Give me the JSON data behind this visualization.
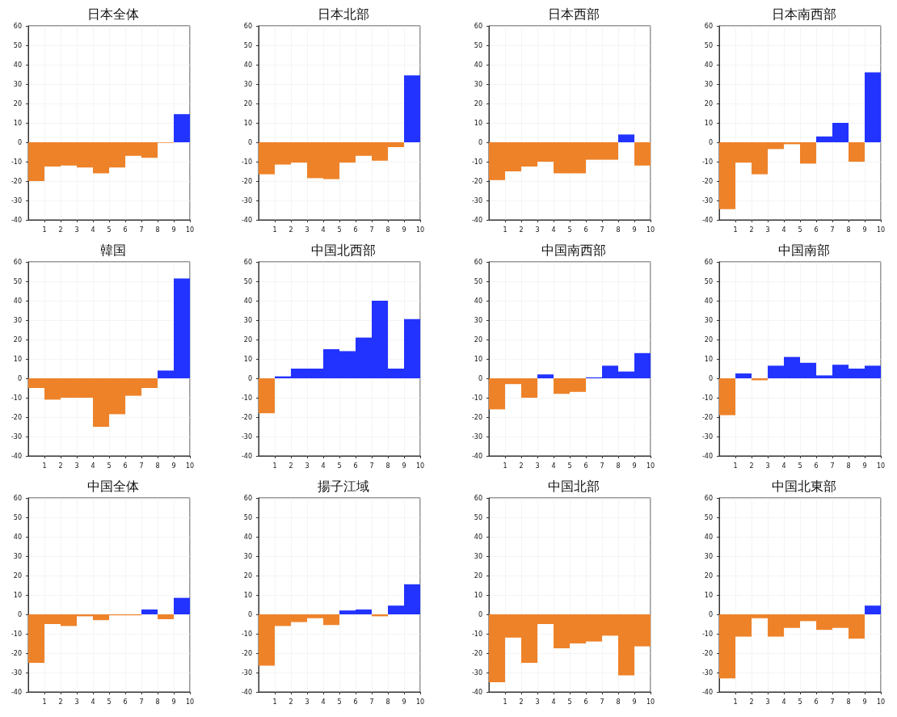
{
  "chart_data": [
    {
      "type": "histogram",
      "title": "日本全体",
      "bins": [
        0,
        1,
        2,
        3,
        4,
        5,
        6,
        7,
        8,
        9,
        10
      ],
      "values": [
        -20,
        -12.5,
        -12,
        -13,
        -16,
        -13,
        -7,
        -8,
        -0.3,
        14.5
      ],
      "colors": [
        "#ee8229",
        "#ee8229",
        "#ee8229",
        "#ee8229",
        "#ee8229",
        "#ee8229",
        "#ee8229",
        "#ee8229",
        "#ee8229",
        "#2233ff"
      ],
      "xlim": [
        0,
        10
      ],
      "xticks": [
        1,
        2,
        3,
        4,
        5,
        6,
        7,
        8,
        9,
        10
      ],
      "ylim": [
        -40,
        60
      ],
      "yticks": [
        -40,
        -30,
        -20,
        -10,
        0,
        10,
        20,
        30,
        40,
        50,
        60
      ],
      "grid": true
    },
    {
      "type": "histogram",
      "title": "日本北部",
      "bins": [
        0,
        1,
        2,
        3,
        4,
        5,
        6,
        7,
        8,
        9,
        10
      ],
      "values": [
        -16.5,
        -11.5,
        -10.5,
        -18.5,
        -19,
        -10.5,
        -7,
        -9.5,
        -2.5,
        34.5
      ],
      "colors": [
        "#ee8229",
        "#ee8229",
        "#ee8229",
        "#ee8229",
        "#ee8229",
        "#ee8229",
        "#ee8229",
        "#ee8229",
        "#ee8229",
        "#2233ff"
      ],
      "xlim": [
        0,
        10
      ],
      "xticks": [
        1,
        2,
        3,
        4,
        5,
        6,
        7,
        8,
        9,
        10
      ],
      "ylim": [
        -40,
        60
      ],
      "yticks": [
        -40,
        -30,
        -20,
        -10,
        0,
        10,
        20,
        30,
        40,
        50,
        60
      ],
      "grid": true
    },
    {
      "type": "histogram",
      "title": "日本西部",
      "bins": [
        0,
        1,
        2,
        3,
        4,
        5,
        6,
        7,
        8,
        9,
        10
      ],
      "values": [
        -19.5,
        -15,
        -12.5,
        -10,
        -16,
        -16,
        -9,
        -9,
        4,
        -12
      ],
      "colors": [
        "#ee8229",
        "#ee8229",
        "#ee8229",
        "#ee8229",
        "#ee8229",
        "#ee8229",
        "#ee8229",
        "#ee8229",
        "#2233ff",
        "#ee8229"
      ],
      "xlim": [
        0,
        10
      ],
      "xticks": [
        1,
        2,
        3,
        4,
        5,
        6,
        7,
        8,
        9,
        10
      ],
      "ylim": [
        -40,
        60
      ],
      "yticks": [
        -40,
        -30,
        -20,
        -10,
        0,
        10,
        20,
        30,
        40,
        50,
        60
      ],
      "grid": true
    },
    {
      "type": "histogram",
      "title": "日本南西部",
      "bins": [
        0,
        1,
        2,
        3,
        4,
        5,
        6,
        7,
        8,
        9,
        10
      ],
      "values": [
        -34.5,
        -10.5,
        -16.5,
        -3.5,
        -1,
        -11,
        3,
        10,
        -10,
        36
      ],
      "colors": [
        "#ee8229",
        "#ee8229",
        "#ee8229",
        "#ee8229",
        "#ee8229",
        "#ee8229",
        "#2233ff",
        "#2233ff",
        "#ee8229",
        "#2233ff"
      ],
      "xlim": [
        0,
        10
      ],
      "xticks": [
        1,
        2,
        3,
        4,
        5,
        6,
        7,
        8,
        9,
        10
      ],
      "ylim": [
        -40,
        60
      ],
      "yticks": [
        -40,
        -30,
        -20,
        -10,
        0,
        10,
        20,
        30,
        40,
        50,
        60
      ],
      "grid": true
    },
    {
      "type": "histogram",
      "title": "韓国",
      "bins": [
        0,
        1,
        2,
        3,
        4,
        5,
        6,
        7,
        8,
        9,
        10
      ],
      "values": [
        -5,
        -11,
        -10,
        -10,
        -25,
        -18.5,
        -9,
        -5,
        4,
        51.5
      ],
      "colors": [
        "#ee8229",
        "#ee8229",
        "#ee8229",
        "#ee8229",
        "#ee8229",
        "#ee8229",
        "#ee8229",
        "#ee8229",
        "#2233ff",
        "#2233ff"
      ],
      "xlim": [
        0,
        10
      ],
      "xticks": [
        1,
        2,
        3,
        4,
        5,
        6,
        7,
        8,
        9,
        10
      ],
      "ylim": [
        -40,
        60
      ],
      "yticks": [
        -40,
        -30,
        -20,
        -10,
        0,
        10,
        20,
        30,
        40,
        50,
        60
      ],
      "grid": true
    },
    {
      "type": "histogram",
      "title": "中国北西部",
      "bins": [
        0,
        1,
        2,
        3,
        4,
        5,
        6,
        7,
        8,
        9,
        10
      ],
      "values": [
        -18,
        1,
        5,
        5,
        15,
        14,
        21,
        40,
        5,
        30.5
      ],
      "colors": [
        "#ee8229",
        "#2233ff",
        "#2233ff",
        "#2233ff",
        "#2233ff",
        "#2233ff",
        "#2233ff",
        "#2233ff",
        "#2233ff",
        "#2233ff"
      ],
      "xlim": [
        0,
        10
      ],
      "xticks": [
        1,
        2,
        3,
        4,
        5,
        6,
        7,
        8,
        9,
        10
      ],
      "ylim": [
        -40,
        60
      ],
      "yticks": [
        -40,
        -30,
        -20,
        -10,
        0,
        10,
        20,
        30,
        40,
        50,
        60
      ],
      "grid": true
    },
    {
      "type": "histogram",
      "title": "中国南西部",
      "bins": [
        0,
        1,
        2,
        3,
        4,
        5,
        6,
        7,
        8,
        9,
        10
      ],
      "values": [
        -16,
        -3,
        -10,
        2,
        -8,
        -7,
        0.5,
        6.5,
        3.5,
        13
      ],
      "colors": [
        "#ee8229",
        "#ee8229",
        "#ee8229",
        "#2233ff",
        "#ee8229",
        "#ee8229",
        "#2233ff",
        "#2233ff",
        "#2233ff",
        "#2233ff"
      ],
      "xlim": [
        0,
        10
      ],
      "xticks": [
        1,
        2,
        3,
        4,
        5,
        6,
        7,
        8,
        9,
        10
      ],
      "ylim": [
        -40,
        60
      ],
      "yticks": [
        -40,
        -30,
        -20,
        -10,
        0,
        10,
        20,
        30,
        40,
        50,
        60
      ],
      "grid": true
    },
    {
      "type": "histogram",
      "title": "中国南部",
      "bins": [
        0,
        1,
        2,
        3,
        4,
        5,
        6,
        7,
        8,
        9,
        10
      ],
      "values": [
        -19,
        2.5,
        -1,
        6.5,
        11,
        8,
        1.5,
        7,
        5,
        6.5
      ],
      "colors": [
        "#ee8229",
        "#2233ff",
        "#ee8229",
        "#2233ff",
        "#2233ff",
        "#2233ff",
        "#2233ff",
        "#2233ff",
        "#2233ff",
        "#2233ff"
      ],
      "xlim": [
        0,
        10
      ],
      "xticks": [
        1,
        2,
        3,
        4,
        5,
        6,
        7,
        8,
        9,
        10
      ],
      "ylim": [
        -40,
        60
      ],
      "yticks": [
        -40,
        -30,
        -20,
        -10,
        0,
        10,
        20,
        30,
        40,
        50,
        60
      ],
      "grid": true
    },
    {
      "type": "histogram",
      "title": "中国全体",
      "bins": [
        0,
        1,
        2,
        3,
        4,
        5,
        6,
        7,
        8,
        9,
        10
      ],
      "values": [
        -25,
        -5,
        -6,
        -1,
        -3,
        -0.5,
        -0.5,
        2.5,
        -2.5,
        8.5
      ],
      "colors": [
        "#ee8229",
        "#ee8229",
        "#ee8229",
        "#ee8229",
        "#ee8229",
        "#ee8229",
        "#ee8229",
        "#2233ff",
        "#ee8229",
        "#2233ff"
      ],
      "xlim": [
        0,
        10
      ],
      "xticks": [
        1,
        2,
        3,
        4,
        5,
        6,
        7,
        8,
        9,
        10
      ],
      "ylim": [
        -40,
        60
      ],
      "yticks": [
        -40,
        -30,
        -20,
        -10,
        0,
        10,
        20,
        30,
        40,
        50,
        60
      ],
      "grid": true
    },
    {
      "type": "histogram",
      "title": "揚子江域",
      "bins": [
        0,
        1,
        2,
        3,
        4,
        5,
        6,
        7,
        8,
        9,
        10
      ],
      "values": [
        -26.5,
        -6,
        -4,
        -2,
        -5.5,
        2,
        2.5,
        -1,
        4.5,
        15.5
      ],
      "colors": [
        "#ee8229",
        "#ee8229",
        "#ee8229",
        "#ee8229",
        "#ee8229",
        "#2233ff",
        "#2233ff",
        "#ee8229",
        "#2233ff",
        "#2233ff"
      ],
      "xlim": [
        0,
        10
      ],
      "xticks": [
        1,
        2,
        3,
        4,
        5,
        6,
        7,
        8,
        9,
        10
      ],
      "ylim": [
        -40,
        60
      ],
      "yticks": [
        -40,
        -30,
        -20,
        -10,
        0,
        10,
        20,
        30,
        40,
        50,
        60
      ],
      "grid": true
    },
    {
      "type": "histogram",
      "title": "中国北部",
      "bins": [
        0,
        1,
        2,
        3,
        4,
        5,
        6,
        7,
        8,
        9,
        10
      ],
      "values": [
        -35,
        -12,
        -25,
        -5,
        -17.5,
        -15,
        -14,
        -11,
        -31.5,
        -16.5
      ],
      "colors": [
        "#ee8229",
        "#ee8229",
        "#ee8229",
        "#ee8229",
        "#ee8229",
        "#ee8229",
        "#ee8229",
        "#ee8229",
        "#ee8229",
        "#ee8229"
      ],
      "xlim": [
        0,
        10
      ],
      "xticks": [
        1,
        2,
        3,
        4,
        5,
        6,
        7,
        8,
        9,
        10
      ],
      "ylim": [
        -40,
        60
      ],
      "yticks": [
        -40,
        -30,
        -20,
        -10,
        0,
        10,
        20,
        30,
        40,
        50,
        60
      ],
      "grid": true
    },
    {
      "type": "histogram",
      "title": "中国北東部",
      "bins": [
        0,
        1,
        2,
        3,
        4,
        5,
        6,
        7,
        8,
        9,
        10
      ],
      "values": [
        -33,
        -11.5,
        -2,
        -11.5,
        -7,
        -3.5,
        -8,
        -7,
        -12.5,
        4.5
      ],
      "colors": [
        "#ee8229",
        "#ee8229",
        "#ee8229",
        "#ee8229",
        "#ee8229",
        "#ee8229",
        "#ee8229",
        "#ee8229",
        "#ee8229",
        "#2233ff"
      ],
      "xlim": [
        0,
        10
      ],
      "xticks": [
        1,
        2,
        3,
        4,
        5,
        6,
        7,
        8,
        9,
        10
      ],
      "ylim": [
        -40,
        60
      ],
      "yticks": [
        -40,
        -30,
        -20,
        -10,
        0,
        10,
        20,
        30,
        40,
        50,
        60
      ],
      "grid": true
    }
  ]
}
